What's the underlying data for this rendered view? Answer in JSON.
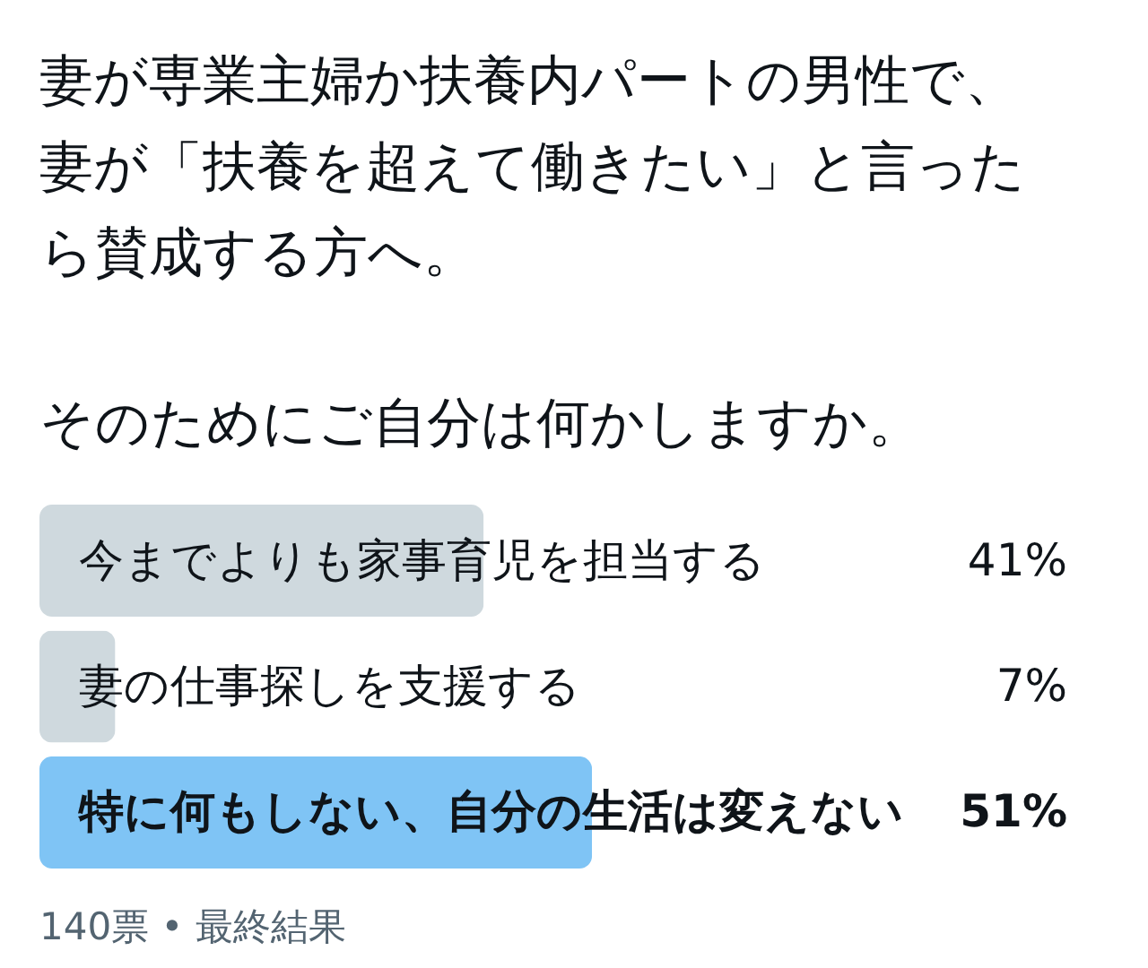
{
  "chart_data": {
    "type": "bar",
    "orientation": "horizontal",
    "title": "妻が専業主婦か扶養内パートの男性で、妻が「扶養を超えて働きたい」と言ったら賛成する方へ。",
    "subtitle": "そのためにご自分は何かしますか。",
    "categories": [
      "今までよりも家事育児を担当する",
      "妻の仕事探しを支援する",
      "特に何もしない、自分の生活は変えない"
    ],
    "values": [
      41,
      7,
      51
    ],
    "colors": [
      "#cfd9de",
      "#cfd9de",
      "#7fc4f5"
    ],
    "value_labels": [
      "41%",
      "7%",
      "51%"
    ],
    "tick_labels": "y",
    "annotations": [
      "140票 • 最終結果"
    ]
  }
}
